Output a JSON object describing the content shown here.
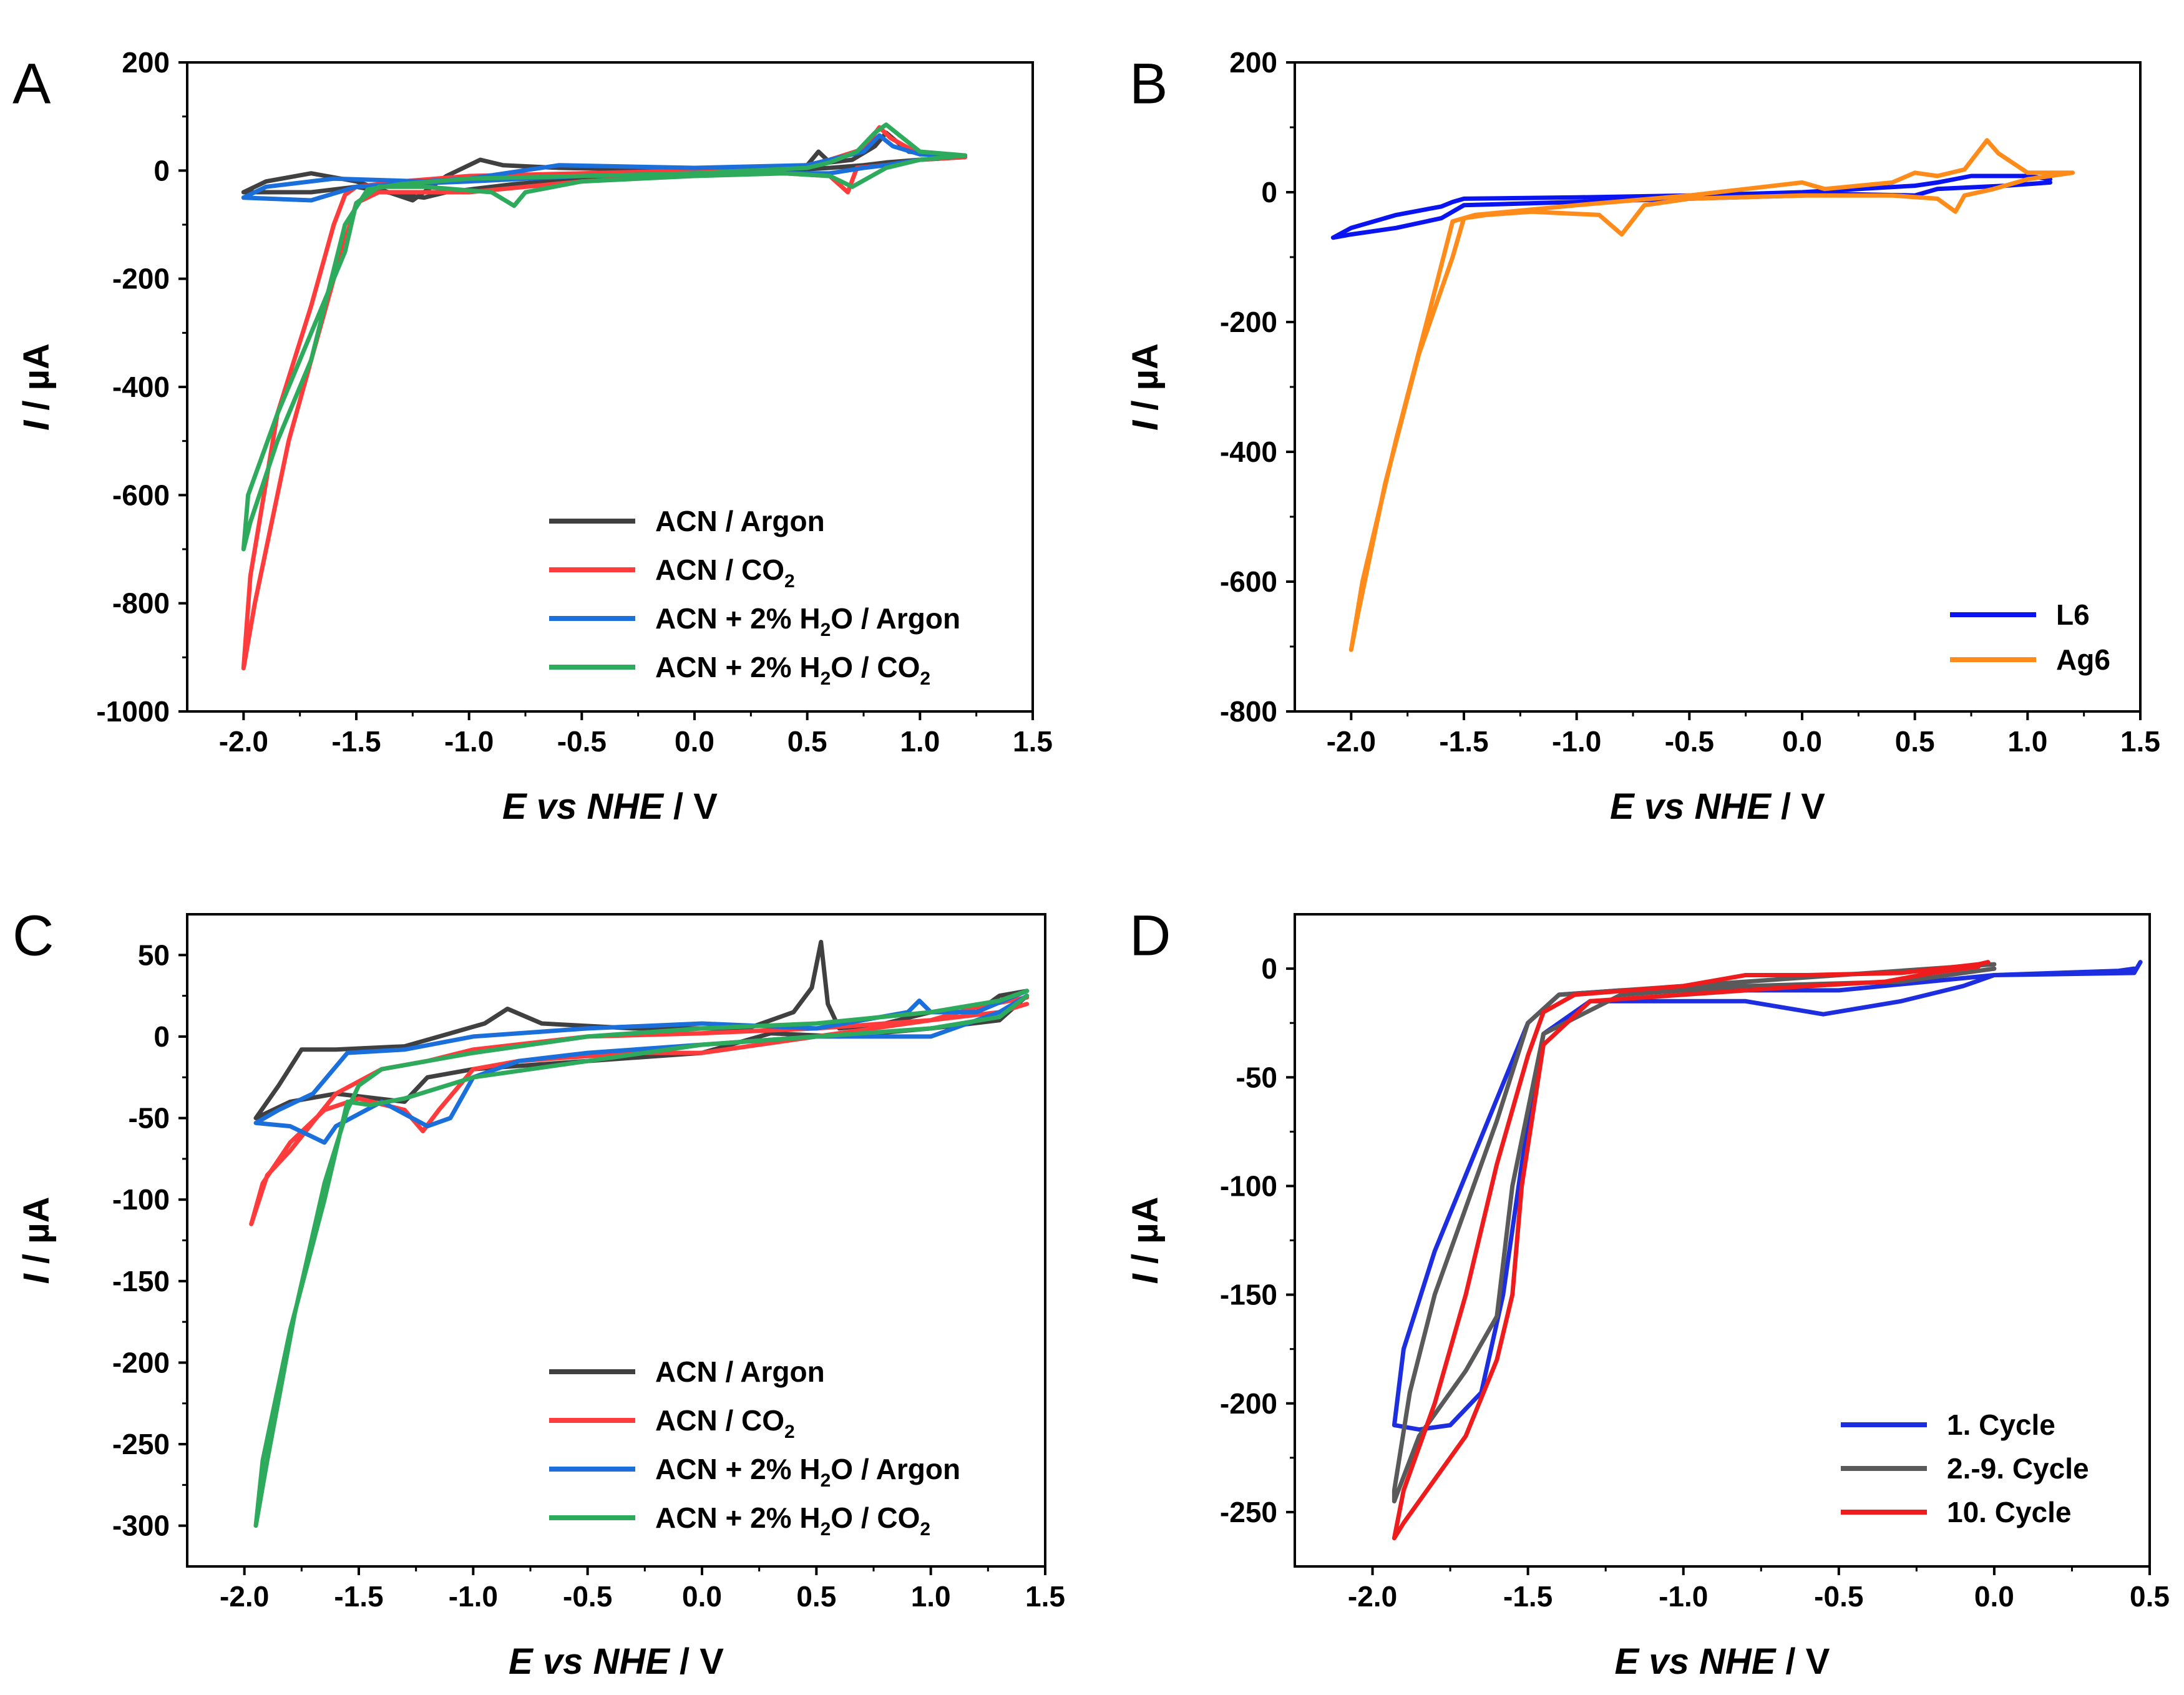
{
  "figure": {
    "x_axis_label": {
      "italic": "E vs NHE",
      "plain": " / V"
    },
    "y_axis_label": {
      "italic": "I",
      "plain": " / µA"
    }
  },
  "chart_data": [
    {
      "id": "A",
      "panel_letter": "A",
      "type": "line",
      "xlim": [
        -2.25,
        1.5
      ],
      "ylim": [
        -1000,
        200
      ],
      "xticks": [
        -2.0,
        -1.5,
        -1.0,
        -0.5,
        0.0,
        0.5,
        1.0,
        1.5
      ],
      "yticks": [
        -1000,
        -800,
        -600,
        -400,
        -200,
        0,
        200
      ],
      "xtick_labels": [
        "-2.0",
        "-1.5",
        "-1.0",
        "-0.5",
        "0.0",
        "0.5",
        "1.0",
        "1.5"
      ],
      "ytick_labels": [
        "-1000",
        "-800",
        "-600",
        "-400",
        "-200",
        "0",
        "200"
      ],
      "xlabel": "E vs NHE / V",
      "ylabel": "I / µA",
      "legend_position": "bottom-right",
      "series": [
        {
          "name": "ACN / Argon",
          "label_main": "ACN / Argon",
          "label_sub": "",
          "label_tail": "",
          "color": "#404040",
          "x": [
            1.2,
            1.0,
            0.85,
            0.75,
            0.6,
            0.4,
            0.0,
            -0.5,
            -0.8,
            -0.9,
            -1.0,
            -1.1,
            -1.2,
            -1.3,
            -1.5,
            -1.7,
            -2.0,
            -1.9,
            -1.7,
            -1.5,
            -1.25,
            -1.1,
            -0.95,
            -0.85,
            -0.6,
            0.0,
            0.5,
            0.55,
            0.6,
            0.7,
            0.8,
            0.85,
            0.95,
            1.2
          ],
          "y": [
            25,
            20,
            15,
            10,
            5,
            0,
            -5,
            -15,
            -25,
            -30,
            -35,
            -40,
            -50,
            -45,
            -30,
            -40,
            -40,
            -20,
            -5,
            -20,
            -55,
            -10,
            20,
            10,
            5,
            0,
            10,
            35,
            15,
            20,
            45,
            70,
            35,
            25
          ]
        },
        {
          "name": "ACN / CO2",
          "label_main": "ACN / CO",
          "label_sub": "2",
          "label_tail": "",
          "color": "#ff3b3b",
          "x": [
            1.2,
            1.0,
            0.85,
            0.72,
            0.68,
            0.6,
            0.4,
            0.0,
            -0.5,
            -1.0,
            -1.4,
            -1.5,
            -1.6,
            -1.8,
            -1.95,
            -2.0,
            -1.97,
            -1.85,
            -1.7,
            -1.6,
            -1.55,
            -1.5,
            -1.3,
            -1.0,
            -0.5,
            0.0,
            0.5,
            0.6,
            0.75,
            0.82,
            0.87,
            1.0,
            1.2
          ],
          "y": [
            25,
            20,
            10,
            5,
            -40,
            -10,
            -5,
            -5,
            -20,
            -40,
            -40,
            -60,
            -200,
            -500,
            -800,
            -920,
            -750,
            -450,
            -250,
            -100,
            -45,
            -30,
            -20,
            -10,
            -5,
            0,
            10,
            20,
            40,
            80,
            60,
            30,
            28
          ]
        },
        {
          "name": "ACN + 2% H2O / Argon",
          "label_main": "ACN + 2% H",
          "label_sub": "2",
          "label_tail": "O / Argon",
          "color": "#1a6fdb",
          "x": [
            1.2,
            1.0,
            0.85,
            0.75,
            0.6,
            0.4,
            0.0,
            -0.5,
            -1.0,
            -1.3,
            -1.5,
            -1.7,
            -2.0,
            -1.9,
            -1.6,
            -1.2,
            -1.0,
            -0.6,
            0.0,
            0.5,
            0.6,
            0.75,
            0.82,
            0.88,
            1.0,
            1.2
          ],
          "y": [
            28,
            20,
            10,
            5,
            -5,
            -5,
            -5,
            -10,
            -20,
            -25,
            -30,
            -55,
            -50,
            -30,
            -15,
            -20,
            -15,
            10,
            5,
            10,
            20,
            35,
            65,
            45,
            30,
            28
          ]
        },
        {
          "name": "ACN + 2% H2O / CO2",
          "label_main": "ACN + 2% H",
          "label_sub": "2",
          "label_tail": "O / CO",
          "label_sub2": "2",
          "color": "#2eaa5c",
          "x": [
            1.2,
            1.0,
            0.85,
            0.7,
            0.6,
            0.4,
            0.0,
            -0.5,
            -0.75,
            -0.8,
            -0.9,
            -1.2,
            -1.4,
            -1.5,
            -1.55,
            -1.7,
            -1.85,
            -1.98,
            -2.0,
            -1.97,
            -1.85,
            -1.7,
            -1.55,
            -1.45,
            -1.3,
            -1.0,
            -0.5,
            0.0,
            0.5,
            0.6,
            0.72,
            0.8,
            0.85,
            1.0,
            1.2
          ],
          "y": [
            28,
            20,
            5,
            -30,
            -10,
            -5,
            -10,
            -20,
            -40,
            -65,
            -40,
            -30,
            -30,
            -60,
            -150,
            -300,
            -450,
            -600,
            -700,
            -650,
            -500,
            -350,
            -100,
            -35,
            -25,
            -15,
            -10,
            -5,
            5,
            15,
            35,
            70,
            85,
            35,
            28
          ]
        }
      ]
    },
    {
      "id": "B",
      "panel_letter": "B",
      "type": "line",
      "xlim": [
        -2.25,
        1.5
      ],
      "ylim": [
        -800,
        200
      ],
      "xticks": [
        -2.0,
        -1.5,
        -1.0,
        -0.5,
        0.0,
        0.5,
        1.0,
        1.5
      ],
      "yticks": [
        -800,
        -600,
        -400,
        -200,
        0,
        200
      ],
      "xtick_labels": [
        "-2.0",
        "-1.5",
        "-1.0",
        "-0.5",
        "0.0",
        "0.5",
        "1.0",
        "1.5"
      ],
      "ytick_labels": [
        "-800",
        "-600",
        "-400",
        "-200",
        "0",
        "200"
      ],
      "xlabel": "E vs NHE / V",
      "ylabel": "I / µA",
      "legend_position": "bottom-right",
      "series": [
        {
          "name": "L6",
          "label_main": "L6",
          "label_sub": "",
          "label_tail": "",
          "color": "#0a14f0",
          "x": [
            1.1,
            0.9,
            0.6,
            0.5,
            0.2,
            0.0,
            -0.5,
            -1.0,
            -1.5,
            -1.6,
            -1.8,
            -2.0,
            -2.08,
            -2.0,
            -1.8,
            -1.6,
            -1.55,
            -1.5,
            -1.0,
            -0.5,
            0.0,
            0.5,
            0.6,
            0.75,
            1.0,
            1.1
          ],
          "y": [
            15,
            10,
            5,
            -5,
            -3,
            -5,
            -10,
            -15,
            -20,
            -40,
            -55,
            -65,
            -70,
            -55,
            -35,
            -22,
            -15,
            -10,
            -8,
            -5,
            0,
            10,
            15,
            25,
            25,
            20
          ]
        },
        {
          "name": "Ag6",
          "label_main": "Ag6",
          "label_sub": "",
          "label_tail": "",
          "color": "#ff8c1a",
          "x": [
            1.2,
            1.0,
            0.85,
            0.72,
            0.68,
            0.6,
            0.4,
            0.0,
            -0.5,
            -0.7,
            -0.8,
            -0.9,
            -1.2,
            -1.4,
            -1.5,
            -1.55,
            -1.7,
            -1.85,
            -1.97,
            -2.0,
            -1.95,
            -1.8,
            -1.65,
            -1.55,
            -1.45,
            -1.3,
            -1.0,
            -0.5,
            0.0,
            0.1,
            0.4,
            0.5,
            0.6,
            0.72,
            0.82,
            0.87,
            1.0,
            1.2
          ],
          "y": [
            30,
            20,
            5,
            -5,
            -30,
            -10,
            -5,
            -5,
            -10,
            -20,
            -65,
            -35,
            -30,
            -35,
            -40,
            -100,
            -250,
            -450,
            -650,
            -705,
            -600,
            -380,
            -180,
            -45,
            -35,
            -30,
            -20,
            -5,
            15,
            5,
            15,
            30,
            25,
            35,
            80,
            60,
            30,
            30
          ]
        }
      ]
    },
    {
      "id": "C",
      "panel_letter": "C",
      "type": "line",
      "xlim": [
        -2.25,
        1.5
      ],
      "ylim": [
        -325,
        75
      ],
      "xticks": [
        -2.0,
        -1.5,
        -1.0,
        -0.5,
        0.0,
        0.5,
        1.0,
        1.5
      ],
      "yticks": [
        -300,
        -250,
        -200,
        -150,
        -100,
        -50,
        0,
        50
      ],
      "xtick_labels": [
        "-2.0",
        "-1.5",
        "-1.0",
        "-0.5",
        "0.0",
        "0.5",
        "1.0",
        "1.5"
      ],
      "ytick_labels": [
        "-300",
        "-250",
        "-200",
        "-150",
        "-100",
        "-50",
        "0",
        "50"
      ],
      "xlabel": "E vs NHE / V",
      "ylabel": "I / µA",
      "legend_position": "bottom-right",
      "series": [
        {
          "name": "ACN / Argon",
          "label_main": "ACN / Argon",
          "label_sub": "",
          "label_tail": "",
          "color": "#404040",
          "x": [
            1.42,
            1.3,
            1.0,
            0.6,
            0.3,
            0.0,
            -0.5,
            -1.0,
            -1.2,
            -1.3,
            -1.6,
            -1.8,
            -1.95,
            -1.85,
            -1.75,
            -1.6,
            -1.3,
            -1.1,
            -0.95,
            -0.85,
            -0.7,
            -0.3,
            0.2,
            0.4,
            0.48,
            0.52,
            0.55,
            0.6,
            0.8,
            1.0,
            1.2,
            1.3,
            1.42
          ],
          "y": [
            25,
            10,
            5,
            0,
            2,
            -10,
            -15,
            -20,
            -25,
            -40,
            -35,
            -40,
            -50,
            -30,
            -8,
            -8,
            -6,
            2,
            8,
            17,
            8,
            5,
            5,
            15,
            30,
            58,
            20,
            5,
            8,
            15,
            15,
            25,
            28
          ]
        },
        {
          "name": "ACN / CO2",
          "label_main": "ACN / CO",
          "label_sub": "2",
          "label_tail": "",
          "color": "#ff3b3b",
          "x": [
            1.42,
            1.3,
            1.0,
            0.5,
            0.0,
            -0.3,
            -0.5,
            -0.8,
            -1.0,
            -1.15,
            -1.22,
            -1.3,
            -1.5,
            -1.65,
            -1.8,
            -1.92,
            -1.97,
            -1.9,
            -1.8,
            -1.6,
            -1.4,
            -1.2,
            -1.0,
            -0.5,
            0.0,
            0.5,
            0.8,
            1.0,
            1.2,
            1.42
          ],
          "y": [
            20,
            15,
            10,
            0,
            -10,
            -10,
            -12,
            -15,
            -20,
            -45,
            -58,
            -45,
            -38,
            -45,
            -65,
            -90,
            -115,
            -85,
            -70,
            -35,
            -20,
            -15,
            -8,
            0,
            2,
            5,
            8,
            10,
            18,
            24
          ]
        },
        {
          "name": "ACN + 2% H2O / Argon",
          "label_main": "ACN + 2% H",
          "label_sub": "2",
          "label_tail": "O / Argon",
          "color": "#1a6fdb",
          "x": [
            1.42,
            1.3,
            1.0,
            0.5,
            0.0,
            -0.5,
            -0.8,
            -1.0,
            -1.1,
            -1.2,
            -1.4,
            -1.6,
            -1.65,
            -1.8,
            -1.95,
            -1.85,
            -1.7,
            -1.55,
            -1.3,
            -1.0,
            -0.5,
            0.0,
            0.5,
            0.9,
            0.95,
            1.0,
            1.2,
            1.42
          ],
          "y": [
            25,
            15,
            0,
            0,
            -5,
            -10,
            -15,
            -25,
            -50,
            -55,
            -40,
            -55,
            -65,
            -55,
            -53,
            -45,
            -35,
            -10,
            -8,
            0,
            5,
            8,
            5,
            15,
            22,
            15,
            15,
            28
          ]
        },
        {
          "name": "ACN + 2% H2O / CO2",
          "label_main": "ACN + 2% H",
          "label_sub": "2",
          "label_tail": "O / CO",
          "label_sub2": "2",
          "color": "#2eaa5c",
          "x": [
            1.42,
            1.3,
            1.0,
            0.5,
            0.0,
            -0.5,
            -1.0,
            -1.3,
            -1.45,
            -1.55,
            -1.65,
            -1.8,
            -1.92,
            -1.95,
            -1.9,
            -1.78,
            -1.65,
            -1.55,
            -1.5,
            -1.4,
            -1.0,
            -0.5,
            0.0,
            0.5,
            1.0,
            1.3,
            1.42
          ],
          "y": [
            25,
            12,
            5,
            0,
            -5,
            -15,
            -25,
            -38,
            -42,
            -40,
            -100,
            -180,
            -260,
            -300,
            -260,
            -170,
            -90,
            -45,
            -30,
            -20,
            -10,
            0,
            5,
            8,
            15,
            22,
            28
          ]
        }
      ]
    },
    {
      "id": "D",
      "panel_letter": "D",
      "type": "line",
      "xlim": [
        -2.25,
        0.5
      ],
      "ylim": [
        -275,
        25
      ],
      "xticks": [
        -2.0,
        -1.5,
        -1.0,
        -0.5,
        0.0,
        0.5
      ],
      "yticks": [
        -250,
        -200,
        -150,
        -100,
        -50,
        0
      ],
      "xtick_labels": [
        "-2.0",
        "-1.5",
        "-1.0",
        "-0.5",
        "0.0",
        "0.5"
      ],
      "ytick_labels": [
        "-250",
        "-200",
        "-150",
        "-100",
        "-50",
        "0"
      ],
      "xlabel": "E vs NHE / V",
      "ylabel": "I / µA",
      "legend_position": "bottom-right",
      "series": [
        {
          "name": "1. Cycle",
          "label_main": "1. Cycle",
          "label_sub": "",
          "label_tail": "",
          "color": "#1c2ee0",
          "x": [
            0.45,
            0.4,
            0.2,
            0.0,
            -0.1,
            -0.3,
            -0.55,
            -0.8,
            -1.0,
            -1.3,
            -1.45,
            -1.52,
            -1.58,
            -1.65,
            -1.75,
            -1.85,
            -1.93,
            -1.9,
            -1.8,
            -1.7,
            -1.6,
            -1.5,
            -1.4,
            -1.2,
            -1.0,
            -0.5,
            0.0,
            0.45,
            0.47
          ],
          "y": [
            0,
            -1,
            -2,
            -3,
            -8,
            -15,
            -21,
            -15,
            -15,
            -15,
            -30,
            -90,
            -150,
            -195,
            -210,
            -212,
            -210,
            -175,
            -130,
            -95,
            -60,
            -25,
            -12,
            -10,
            -10,
            -10,
            -3,
            -2,
            3
          ]
        },
        {
          "name": "2.-9. Cycle",
          "label_main": "2.-9. Cycle",
          "label_sub": "",
          "label_tail": "",
          "color": "#5a5a5a",
          "x": [
            0.0,
            -0.3,
            -0.8,
            -1.2,
            -1.45,
            -1.55,
            -1.6,
            -1.7,
            -1.85,
            -1.93,
            -1.93,
            -1.88,
            -1.8,
            -1.7,
            -1.6,
            -1.5,
            -1.4,
            -1.0,
            -0.5,
            0.0
          ],
          "y": [
            0,
            -6,
            -8,
            -12,
            -30,
            -100,
            -160,
            -185,
            -215,
            -245,
            -240,
            -195,
            -150,
            -110,
            -70,
            -25,
            -12,
            -8,
            -3,
            2
          ]
        },
        {
          "name": "10. Cycle",
          "label_main": "10. Cycle",
          "label_sub": "",
          "label_tail": "",
          "color": "#ee1c1c",
          "x": [
            -0.05,
            -0.2,
            -0.35,
            -0.6,
            -0.8,
            -1.0,
            -1.3,
            -1.45,
            -1.52,
            -1.55,
            -1.6,
            -1.7,
            -1.8,
            -1.9,
            -1.93,
            -1.9,
            -1.8,
            -1.7,
            -1.6,
            -1.5,
            -1.45,
            -1.35,
            -1.0,
            -0.8,
            -0.6,
            -0.3,
            -0.05,
            -0.02
          ],
          "y": [
            1,
            -2,
            -6,
            -8,
            -10,
            -12,
            -15,
            -35,
            -100,
            -150,
            -180,
            -215,
            -235,
            -255,
            -262,
            -240,
            -200,
            -150,
            -90,
            -40,
            -20,
            -12,
            -8,
            -3,
            -3,
            -2,
            2,
            3
          ]
        }
      ]
    }
  ]
}
